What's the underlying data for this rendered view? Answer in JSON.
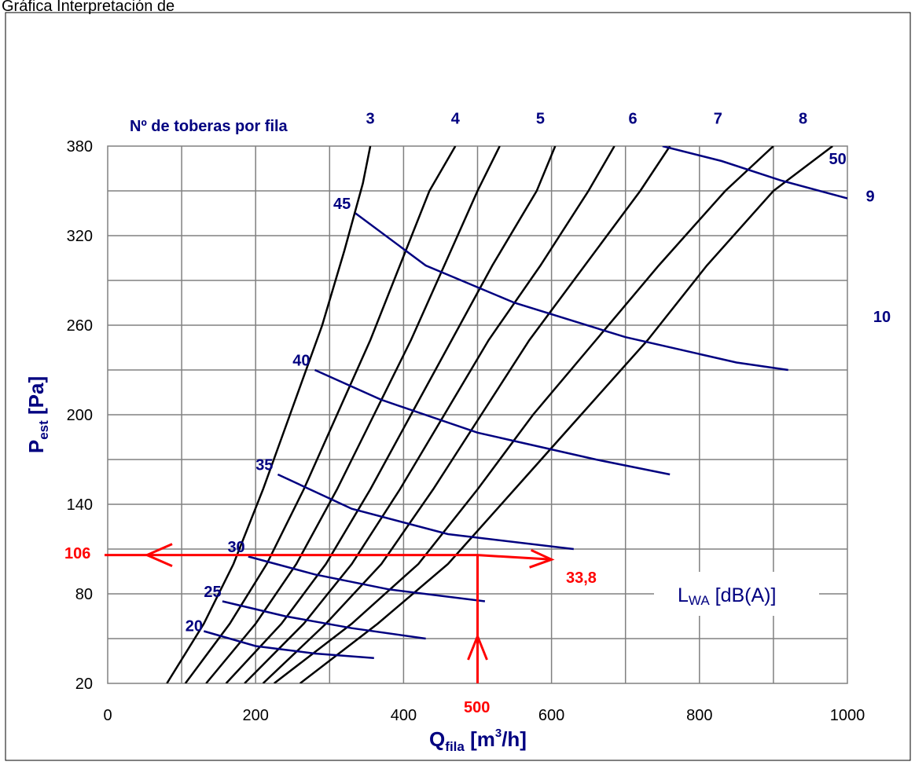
{
  "header_fragment": "Gráfica Interpretación de",
  "chart_data": {
    "type": "line",
    "title": "",
    "xlabel": {
      "main": "Q",
      "sub": "fila",
      "unit_open": " [m",
      "unit_sup": "3",
      "unit_close": "/h]"
    },
    "ylabel": {
      "main": "P",
      "sub": "est",
      "unit": " [Pa]"
    },
    "xlim": [
      0,
      1000
    ],
    "ylim": [
      20,
      380
    ],
    "x_ticks": [
      "0",
      "200",
      "400",
      "600",
      "800",
      "1000"
    ],
    "y_ticks": [
      "20",
      "80",
      "140",
      "200",
      "260",
      "320",
      "380"
    ],
    "y_minor_ticks": [
      50,
      110,
      170,
      230,
      290,
      350
    ],
    "x_minor_ticks": [
      100,
      300,
      500,
      700,
      900
    ],
    "grid": true,
    "nozzle_header": "Nº de toberas por fila",
    "nozzle_series": [
      {
        "name": "3",
        "points": [
          [
            80,
            20
          ],
          [
            130,
            60
          ],
          [
            170,
            100
          ],
          [
            210,
            150
          ],
          [
            250,
            205
          ],
          [
            290,
            260
          ],
          [
            320,
            310
          ],
          [
            345,
            355
          ],
          [
            355,
            380
          ]
        ]
      },
      {
        "name": "4",
        "points": [
          [
            105,
            20
          ],
          [
            165,
            60
          ],
          [
            215,
            100
          ],
          [
            265,
            150
          ],
          [
            310,
            200
          ],
          [
            355,
            250
          ],
          [
            395,
            300
          ],
          [
            435,
            350
          ],
          [
            470,
            380
          ]
        ]
      },
      {
        "name": "5",
        "points": [
          [
            133,
            20
          ],
          [
            200,
            60
          ],
          [
            255,
            100
          ],
          [
            310,
            150
          ],
          [
            360,
            200
          ],
          [
            410,
            250
          ],
          [
            455,
            300
          ],
          [
            500,
            350
          ],
          [
            530,
            380
          ]
        ]
      },
      {
        "name": "6",
        "points": [
          [
            160,
            20
          ],
          [
            235,
            60
          ],
          [
            295,
            100
          ],
          [
            355,
            150
          ],
          [
            410,
            200
          ],
          [
            465,
            250
          ],
          [
            520,
            300
          ],
          [
            580,
            350
          ],
          [
            605,
            380
          ]
        ]
      },
      {
        "name": "7",
        "points": [
          [
            185,
            20
          ],
          [
            265,
            60
          ],
          [
            330,
            100
          ],
          [
            395,
            150
          ],
          [
            455,
            200
          ],
          [
            515,
            250
          ],
          [
            585,
            300
          ],
          [
            650,
            350
          ],
          [
            685,
            380
          ]
        ]
      },
      {
        "name": "8",
        "points": [
          [
            210,
            20
          ],
          [
            295,
            60
          ],
          [
            370,
            100
          ],
          [
            440,
            150
          ],
          [
            505,
            200
          ],
          [
            570,
            250
          ],
          [
            645,
            300
          ],
          [
            720,
            350
          ],
          [
            760,
            380
          ]
        ]
      },
      {
        "name": "9",
        "points": [
          [
            225,
            20
          ],
          [
            330,
            60
          ],
          [
            420,
            100
          ],
          [
            500,
            150
          ],
          [
            575,
            200
          ],
          [
            660,
            250
          ],
          [
            745,
            300
          ],
          [
            835,
            350
          ],
          [
            900,
            380
          ]
        ]
      },
      {
        "name": "10",
        "points": [
          [
            260,
            20
          ],
          [
            365,
            60
          ],
          [
            460,
            100
          ],
          [
            550,
            150
          ],
          [
            640,
            200
          ],
          [
            730,
            250
          ],
          [
            810,
            300
          ],
          [
            900,
            350
          ],
          [
            980,
            380
          ]
        ]
      }
    ],
    "nozzle_label_positions": [
      {
        "name": "3",
        "x": 355,
        "y": 395
      },
      {
        "name": "4",
        "x": 470,
        "y": 395
      },
      {
        "name": "5",
        "x": 585,
        "y": 395
      },
      {
        "name": "6",
        "x": 710,
        "y": 395
      },
      {
        "name": "7",
        "x": 825,
        "y": 395
      },
      {
        "name": "8",
        "x": 940,
        "y": 395
      }
    ],
    "sound_series": [
      {
        "name": "20",
        "points": [
          [
            130,
            55
          ],
          [
            200,
            45
          ],
          [
            280,
            40
          ],
          [
            360,
            37
          ]
        ]
      },
      {
        "name": "25",
        "points": [
          [
            155,
            75
          ],
          [
            240,
            65
          ],
          [
            330,
            57
          ],
          [
            430,
            50
          ]
        ]
      },
      {
        "name": "30",
        "points": [
          [
            190,
            105
          ],
          [
            280,
            93
          ],
          [
            380,
            83
          ],
          [
            510,
            75
          ]
        ]
      },
      {
        "name": "35",
        "points": [
          [
            230,
            160
          ],
          [
            330,
            137
          ],
          [
            460,
            120
          ],
          [
            630,
            110
          ]
        ]
      },
      {
        "name": "40",
        "points": [
          [
            280,
            230
          ],
          [
            370,
            210
          ],
          [
            500,
            188
          ],
          [
            660,
            170
          ],
          [
            760,
            160
          ]
        ]
      },
      {
        "name": "45",
        "points": [
          [
            335,
            335
          ],
          [
            430,
            300
          ],
          [
            550,
            275
          ],
          [
            700,
            252
          ],
          [
            850,
            235
          ],
          [
            920,
            230
          ]
        ]
      },
      {
        "name": "50",
        "points": [
          [
            750,
            380
          ],
          [
            830,
            370
          ],
          [
            910,
            357
          ],
          [
            1000,
            345
          ]
        ]
      }
    ],
    "sound_label_positions": [
      {
        "name": "20",
        "x": 105,
        "y": 55
      },
      {
        "name": "25",
        "x": 130,
        "y": 78
      },
      {
        "name": "30",
        "x": 162,
        "y": 108
      },
      {
        "name": "35",
        "x": 200,
        "y": 163
      },
      {
        "name": "40",
        "x": 250,
        "y": 233
      },
      {
        "name": "45",
        "x": 305,
        "y": 338
      },
      {
        "name": "50",
        "x": 975,
        "y": 368
      },
      {
        "name": "9",
        "x": 1025,
        "y": 343
      },
      {
        "name": "10",
        "x": 1035,
        "y": 262
      }
    ],
    "legend_box": {
      "main": "L",
      "sub": "WA",
      "rest": " [dB(A)]"
    },
    "example": {
      "q_value": "500",
      "p_value": "106",
      "lwa_value": "33,8",
      "q": 500,
      "p": 106,
      "lwa_point": [
        600,
        103
      ]
    }
  }
}
